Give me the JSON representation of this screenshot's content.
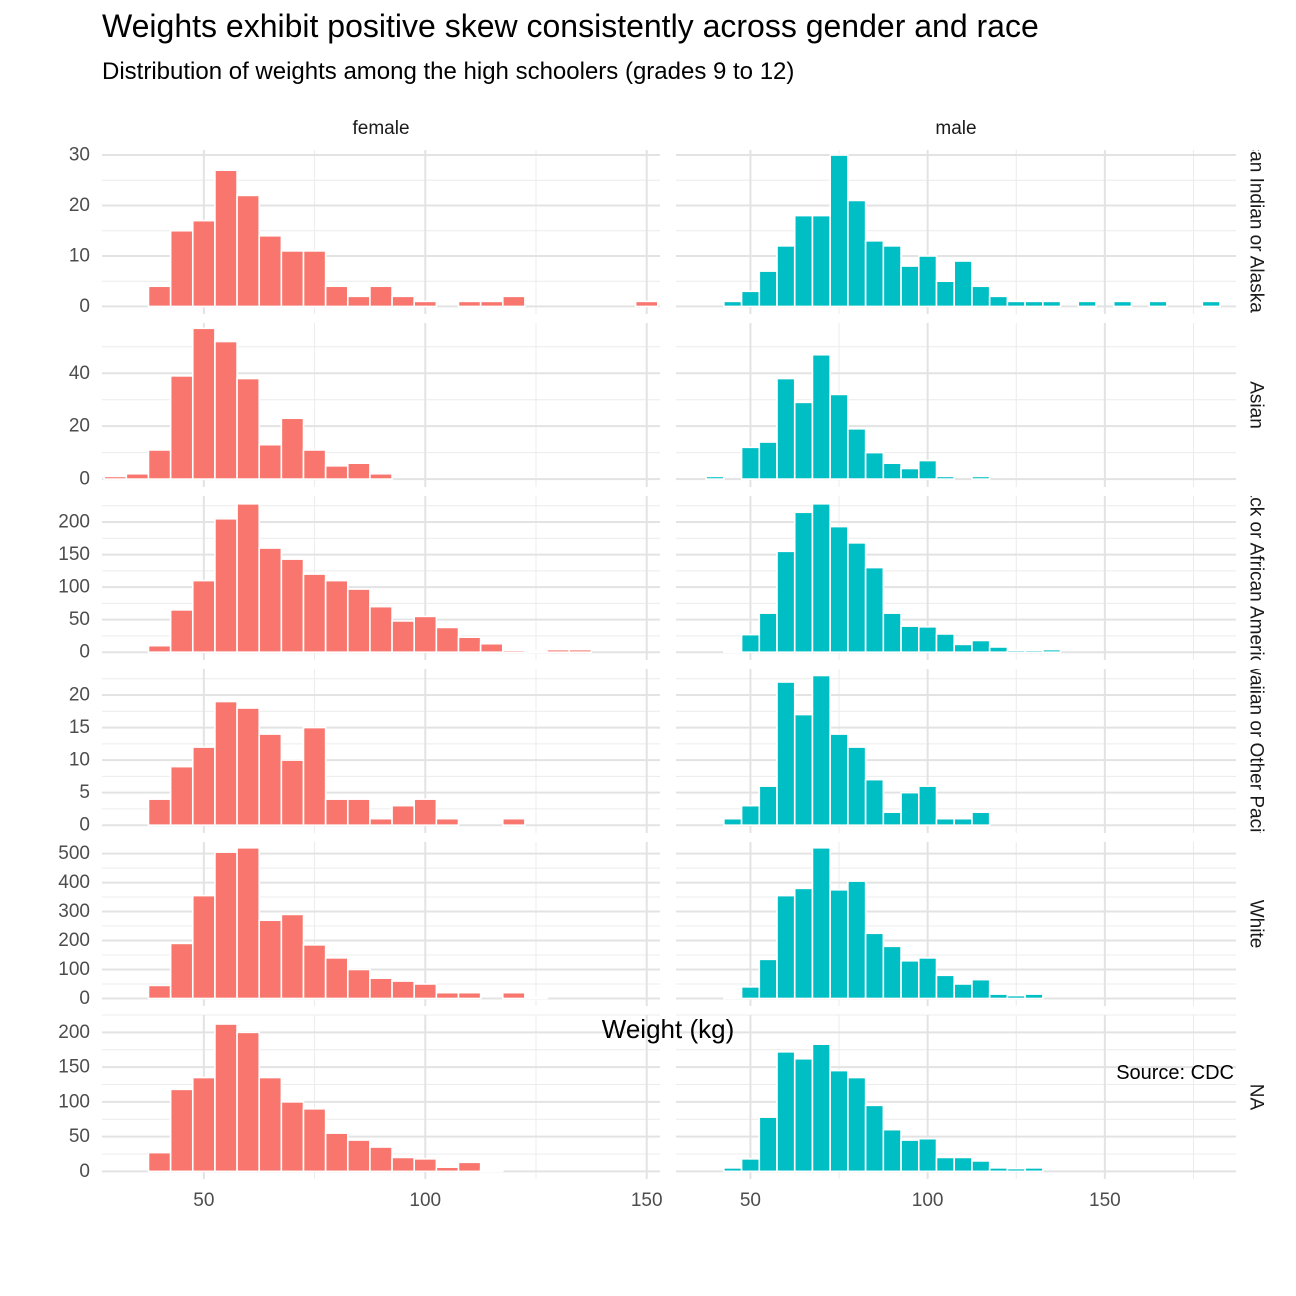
{
  "chart_data": {
    "type": "bar",
    "title": "Weights exhibit positive skew consistently across gender and race",
    "subtitle": "Distribution of weights among the high schoolers (grades 9 to 12)",
    "xlabel": "Weight (kg)",
    "ylabel": "",
    "caption": "Source: CDC",
    "grid": true,
    "bin_width_kg": 5,
    "columns": [
      "female",
      "male"
    ],
    "column_colors": [
      "#F8766D",
      "#00BFC4"
    ],
    "row_strip_labels": [
      "American Indian or Alaska Native",
      "Asian",
      "Black or African American",
      "Native Hawaiian or Other Pacific Islander",
      "White",
      "NA"
    ],
    "x_ticks": [
      50,
      100,
      150
    ],
    "panels": [
      {
        "column": "female",
        "row": "American Indian or Alaska Native",
        "xlim": [
          27,
          153
        ],
        "ylim": [
          -1.5,
          31
        ],
        "y_ticks": [
          0,
          10,
          20,
          30
        ],
        "bins": [
          {
            "x": 40,
            "count": 4
          },
          {
            "x": 45,
            "count": 15
          },
          {
            "x": 50,
            "count": 17
          },
          {
            "x": 55,
            "count": 27
          },
          {
            "x": 60,
            "count": 22
          },
          {
            "x": 65,
            "count": 14
          },
          {
            "x": 70,
            "count": 11
          },
          {
            "x": 75,
            "count": 11
          },
          {
            "x": 80,
            "count": 4
          },
          {
            "x": 85,
            "count": 2
          },
          {
            "x": 90,
            "count": 4
          },
          {
            "x": 95,
            "count": 2
          },
          {
            "x": 100,
            "count": 1
          },
          {
            "x": 110,
            "count": 1
          },
          {
            "x": 115,
            "count": 1
          },
          {
            "x": 120,
            "count": 2
          },
          {
            "x": 150,
            "count": 1
          }
        ]
      },
      {
        "column": "male",
        "row": "American Indian or Alaska Native",
        "xlim": [
          29,
          187
        ],
        "ylim": [
          -1.5,
          31
        ],
        "y_ticks": [
          0,
          10,
          20,
          30
        ],
        "bins": [
          {
            "x": 45,
            "count": 1
          },
          {
            "x": 50,
            "count": 3
          },
          {
            "x": 55,
            "count": 7
          },
          {
            "x": 60,
            "count": 12
          },
          {
            "x": 65,
            "count": 18
          },
          {
            "x": 70,
            "count": 18
          },
          {
            "x": 75,
            "count": 30
          },
          {
            "x": 80,
            "count": 21
          },
          {
            "x": 85,
            "count": 13
          },
          {
            "x": 90,
            "count": 12
          },
          {
            "x": 95,
            "count": 8
          },
          {
            "x": 100,
            "count": 10
          },
          {
            "x": 105,
            "count": 5
          },
          {
            "x": 110,
            "count": 9
          },
          {
            "x": 115,
            "count": 4
          },
          {
            "x": 120,
            "count": 2
          },
          {
            "x": 125,
            "count": 1
          },
          {
            "x": 130,
            "count": 1
          },
          {
            "x": 135,
            "count": 1
          },
          {
            "x": 145,
            "count": 1
          },
          {
            "x": 155,
            "count": 1
          },
          {
            "x": 165,
            "count": 1
          },
          {
            "x": 180,
            "count": 1
          }
        ]
      },
      {
        "column": "female",
        "row": "Asian",
        "xlim": [
          27,
          153
        ],
        "ylim": [
          -3,
          59
        ],
        "y_ticks": [
          0,
          20,
          40
        ],
        "bins": [
          {
            "x": 30,
            "count": 1
          },
          {
            "x": 35,
            "count": 2
          },
          {
            "x": 40,
            "count": 11
          },
          {
            "x": 45,
            "count": 39
          },
          {
            "x": 50,
            "count": 57
          },
          {
            "x": 55,
            "count": 52
          },
          {
            "x": 60,
            "count": 38
          },
          {
            "x": 65,
            "count": 13
          },
          {
            "x": 70,
            "count": 23
          },
          {
            "x": 75,
            "count": 11
          },
          {
            "x": 80,
            "count": 5
          },
          {
            "x": 85,
            "count": 6
          },
          {
            "x": 90,
            "count": 2
          }
        ]
      },
      {
        "column": "male",
        "row": "Asian",
        "xlim": [
          29,
          187
        ],
        "ylim": [
          -3,
          59
        ],
        "y_ticks": [
          0,
          20,
          40
        ],
        "bins": [
          {
            "x": 40,
            "count": 1
          },
          {
            "x": 50,
            "count": 12
          },
          {
            "x": 55,
            "count": 14
          },
          {
            "x": 60,
            "count": 38
          },
          {
            "x": 65,
            "count": 29
          },
          {
            "x": 70,
            "count": 47
          },
          {
            "x": 75,
            "count": 32
          },
          {
            "x": 80,
            "count": 19
          },
          {
            "x": 85,
            "count": 10
          },
          {
            "x": 90,
            "count": 6
          },
          {
            "x": 95,
            "count": 4
          },
          {
            "x": 100,
            "count": 7
          },
          {
            "x": 105,
            "count": 1
          },
          {
            "x": 115,
            "count": 1
          }
        ]
      },
      {
        "column": "female",
        "row": "Black or African American",
        "xlim": [
          27,
          153
        ],
        "ylim": [
          -12,
          240
        ],
        "y_ticks": [
          0,
          50,
          100,
          150,
          200
        ],
        "bins": [
          {
            "x": 40,
            "count": 10
          },
          {
            "x": 45,
            "count": 65
          },
          {
            "x": 50,
            "count": 110
          },
          {
            "x": 55,
            "count": 205
          },
          {
            "x": 60,
            "count": 228
          },
          {
            "x": 65,
            "count": 160
          },
          {
            "x": 70,
            "count": 143
          },
          {
            "x": 75,
            "count": 120
          },
          {
            "x": 80,
            "count": 110
          },
          {
            "x": 85,
            "count": 97
          },
          {
            "x": 90,
            "count": 70
          },
          {
            "x": 95,
            "count": 48
          },
          {
            "x": 100,
            "count": 55
          },
          {
            "x": 105,
            "count": 38
          },
          {
            "x": 110,
            "count": 23
          },
          {
            "x": 115,
            "count": 13
          },
          {
            "x": 120,
            "count": 3
          },
          {
            "x": 125,
            "count": 2
          },
          {
            "x": 130,
            "count": 4
          },
          {
            "x": 135,
            "count": 4
          }
        ]
      },
      {
        "column": "male",
        "row": "Black or African American",
        "xlim": [
          29,
          187
        ],
        "ylim": [
          -12,
          240
        ],
        "y_ticks": [
          0,
          50,
          100,
          150,
          200
        ],
        "bins": [
          {
            "x": 45,
            "count": 2
          },
          {
            "x": 50,
            "count": 27
          },
          {
            "x": 55,
            "count": 60
          },
          {
            "x": 60,
            "count": 155
          },
          {
            "x": 65,
            "count": 215
          },
          {
            "x": 70,
            "count": 228
          },
          {
            "x": 75,
            "count": 193
          },
          {
            "x": 80,
            "count": 168
          },
          {
            "x": 85,
            "count": 130
          },
          {
            "x": 90,
            "count": 60
          },
          {
            "x": 95,
            "count": 40
          },
          {
            "x": 100,
            "count": 39
          },
          {
            "x": 105,
            "count": 28
          },
          {
            "x": 110,
            "count": 12
          },
          {
            "x": 115,
            "count": 18
          },
          {
            "x": 120,
            "count": 8
          },
          {
            "x": 125,
            "count": 3
          },
          {
            "x": 130,
            "count": 3
          },
          {
            "x": 135,
            "count": 4
          }
        ]
      },
      {
        "column": "female",
        "row": "Native Hawaiian or Other Pacific Islander",
        "xlim": [
          27,
          153
        ],
        "ylim": [
          -1.2,
          24
        ],
        "y_ticks": [
          0,
          5,
          10,
          15,
          20
        ],
        "bins": [
          {
            "x": 40,
            "count": 4
          },
          {
            "x": 45,
            "count": 9
          },
          {
            "x": 50,
            "count": 12
          },
          {
            "x": 55,
            "count": 19
          },
          {
            "x": 60,
            "count": 18
          },
          {
            "x": 65,
            "count": 14
          },
          {
            "x": 70,
            "count": 10
          },
          {
            "x": 75,
            "count": 15
          },
          {
            "x": 80,
            "count": 4
          },
          {
            "x": 85,
            "count": 4
          },
          {
            "x": 90,
            "count": 1
          },
          {
            "x": 95,
            "count": 3
          },
          {
            "x": 100,
            "count": 4
          },
          {
            "x": 105,
            "count": 1
          },
          {
            "x": 120,
            "count": 1
          }
        ]
      },
      {
        "column": "male",
        "row": "Native Hawaiian or Other Pacific Islander",
        "xlim": [
          29,
          187
        ],
        "ylim": [
          -1.2,
          24
        ],
        "y_ticks": [
          0,
          5,
          10,
          15,
          20
        ],
        "bins": [
          {
            "x": 45,
            "count": 1
          },
          {
            "x": 50,
            "count": 3
          },
          {
            "x": 55,
            "count": 6
          },
          {
            "x": 60,
            "count": 22
          },
          {
            "x": 65,
            "count": 17
          },
          {
            "x": 70,
            "count": 23
          },
          {
            "x": 75,
            "count": 14
          },
          {
            "x": 80,
            "count": 12
          },
          {
            "x": 85,
            "count": 7
          },
          {
            "x": 90,
            "count": 2
          },
          {
            "x": 95,
            "count": 5
          },
          {
            "x": 100,
            "count": 6
          },
          {
            "x": 105,
            "count": 1
          },
          {
            "x": 110,
            "count": 1
          },
          {
            "x": 115,
            "count": 2
          }
        ]
      },
      {
        "column": "female",
        "row": "White",
        "xlim": [
          27,
          153
        ],
        "ylim": [
          -26,
          540
        ],
        "y_ticks": [
          0,
          100,
          200,
          300,
          400,
          500
        ],
        "bins": [
          {
            "x": 40,
            "count": 45
          },
          {
            "x": 45,
            "count": 190
          },
          {
            "x": 50,
            "count": 355
          },
          {
            "x": 55,
            "count": 505
          },
          {
            "x": 60,
            "count": 520
          },
          {
            "x": 65,
            "count": 270
          },
          {
            "x": 70,
            "count": 290
          },
          {
            "x": 75,
            "count": 185
          },
          {
            "x": 80,
            "count": 140
          },
          {
            "x": 85,
            "count": 100
          },
          {
            "x": 90,
            "count": 70
          },
          {
            "x": 95,
            "count": 60
          },
          {
            "x": 100,
            "count": 50
          },
          {
            "x": 105,
            "count": 20
          },
          {
            "x": 110,
            "count": 20
          },
          {
            "x": 120,
            "count": 20
          },
          {
            "x": 125,
            "count": 5
          }
        ]
      },
      {
        "column": "male",
        "row": "White",
        "xlim": [
          29,
          187
        ],
        "ylim": [
          -26,
          540
        ],
        "y_ticks": [
          0,
          100,
          200,
          300,
          400,
          500
        ],
        "bins": [
          {
            "x": 45,
            "count": 5
          },
          {
            "x": 50,
            "count": 40
          },
          {
            "x": 55,
            "count": 135
          },
          {
            "x": 60,
            "count": 355
          },
          {
            "x": 65,
            "count": 380
          },
          {
            "x": 70,
            "count": 520
          },
          {
            "x": 75,
            "count": 375
          },
          {
            "x": 80,
            "count": 405
          },
          {
            "x": 85,
            "count": 225
          },
          {
            "x": 90,
            "count": 180
          },
          {
            "x": 95,
            "count": 130
          },
          {
            "x": 100,
            "count": 140
          },
          {
            "x": 105,
            "count": 80
          },
          {
            "x": 110,
            "count": 50
          },
          {
            "x": 115,
            "count": 65
          },
          {
            "x": 120,
            "count": 15
          },
          {
            "x": 125,
            "count": 10
          },
          {
            "x": 130,
            "count": 15
          }
        ]
      },
      {
        "column": "female",
        "row": "NA",
        "xlim": [
          27,
          153
        ],
        "ylim": [
          -11,
          225
        ],
        "y_ticks": [
          0,
          50,
          100,
          150,
          200
        ],
        "bins": [
          {
            "x": 40,
            "count": 27
          },
          {
            "x": 45,
            "count": 118
          },
          {
            "x": 50,
            "count": 135
          },
          {
            "x": 55,
            "count": 212
          },
          {
            "x": 60,
            "count": 200
          },
          {
            "x": 65,
            "count": 135
          },
          {
            "x": 70,
            "count": 100
          },
          {
            "x": 75,
            "count": 90
          },
          {
            "x": 80,
            "count": 55
          },
          {
            "x": 85,
            "count": 45
          },
          {
            "x": 90,
            "count": 35
          },
          {
            "x": 95,
            "count": 20
          },
          {
            "x": 100,
            "count": 18
          },
          {
            "x": 105,
            "count": 6
          },
          {
            "x": 110,
            "count": 13
          },
          {
            "x": 115,
            "count": 2
          }
        ]
      },
      {
        "column": "male",
        "row": "NA",
        "xlim": [
          29,
          187
        ],
        "ylim": [
          -11,
          225
        ],
        "y_ticks": [
          0,
          50,
          100,
          150,
          200
        ],
        "bins": [
          {
            "x": 45,
            "count": 5
          },
          {
            "x": 50,
            "count": 18
          },
          {
            "x": 55,
            "count": 78
          },
          {
            "x": 60,
            "count": 172
          },
          {
            "x": 65,
            "count": 162
          },
          {
            "x": 70,
            "count": 183
          },
          {
            "x": 75,
            "count": 145
          },
          {
            "x": 80,
            "count": 135
          },
          {
            "x": 85,
            "count": 95
          },
          {
            "x": 90,
            "count": 60
          },
          {
            "x": 95,
            "count": 45
          },
          {
            "x": 100,
            "count": 47
          },
          {
            "x": 105,
            "count": 20
          },
          {
            "x": 110,
            "count": 20
          },
          {
            "x": 115,
            "count": 15
          },
          {
            "x": 120,
            "count": 5
          },
          {
            "x": 125,
            "count": 4
          },
          {
            "x": 130,
            "count": 5
          }
        ]
      }
    ]
  }
}
